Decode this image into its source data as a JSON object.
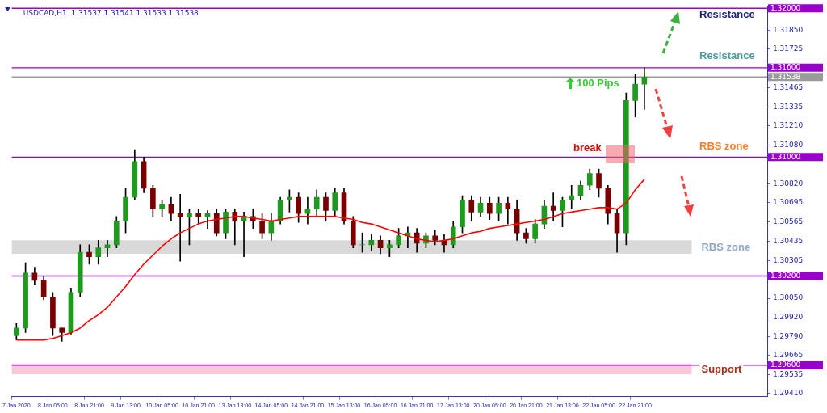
{
  "chart_data": {
    "type": "candlestick",
    "title": "USDCAD,H1  1.31537 1.31541 1.31533 1.31538",
    "categories": [
      "7 Jan 2020",
      null,
      null,
      null,
      "8 Jan 05:00",
      null,
      null,
      null,
      "8 Jan 21:00",
      null,
      null,
      null,
      "9 Jan 13:00",
      null,
      null,
      null,
      "10 Jan 05:00",
      null,
      null,
      null,
      "10 Jan 21:00",
      null,
      null,
      null,
      "13 Jan 13:00",
      null,
      null,
      null,
      "14 Jan 05:00",
      null,
      null,
      null,
      "14 Jan 21:00",
      null,
      null,
      null,
      "15 Jan 13:00",
      null,
      null,
      null,
      "16 Jan 05:00",
      null,
      null,
      null,
      "16 Jan 21:00",
      null,
      null,
      null,
      "17 Jan 13:00",
      null,
      null,
      null,
      "20 Jan 05:00",
      null,
      null,
      null,
      "20 Jan 21:00",
      null,
      null,
      null,
      "21 Jan 13:00",
      null,
      null,
      null,
      "22 Jan 05:00",
      null,
      null,
      null,
      "22 Jan 21:00",
      null,
      null,
      null,
      null,
      null,
      null,
      null,
      null,
      null,
      null,
      null,
      null,
      null,
      null
    ],
    "ohlc": [
      [
        1.298,
        1.2988,
        1.2977,
        1.2985
      ],
      [
        1.2985,
        1.3029,
        1.2982,
        1.3022
      ],
      [
        1.3022,
        1.3026,
        1.3014,
        1.3017
      ],
      [
        1.3017,
        1.302,
        1.3004,
        1.3006
      ],
      [
        1.3006,
        1.3009,
        1.298,
        1.2985
      ],
      [
        1.2985,
        1.2985,
        1.2976,
        1.2982
      ],
      [
        1.2982,
        1.3012,
        1.2981,
        1.3009
      ],
      [
        1.3009,
        1.3041,
        1.3006,
        1.3036
      ],
      [
        1.3036,
        1.3041,
        1.3028,
        1.3033
      ],
      [
        1.3033,
        1.3044,
        1.3028,
        1.3039
      ],
      [
        1.3039,
        1.3044,
        1.3033,
        1.3041
      ],
      [
        1.3041,
        1.306,
        1.3039,
        1.3057
      ],
      [
        1.3057,
        1.3079,
        1.3049,
        1.3073
      ],
      [
        1.3073,
        1.3105,
        1.3071,
        1.3097
      ],
      [
        1.3097,
        1.31,
        1.3076,
        1.3079
      ],
      [
        1.3079,
        1.3081,
        1.306,
        1.3065
      ],
      [
        1.3065,
        1.3071,
        1.306,
        1.3068
      ],
      [
        1.3068,
        1.3073,
        1.3057,
        1.3062
      ],
      [
        1.3062,
        1.3075,
        1.303,
        1.306
      ],
      [
        1.306,
        1.3065,
        1.3041,
        1.3062
      ],
      [
        1.3062,
        1.3065,
        1.3055,
        1.306
      ],
      [
        1.306,
        1.3064,
        1.3052,
        1.3062
      ],
      [
        1.3062,
        1.3065,
        1.3047,
        1.3049
      ],
      [
        1.3049,
        1.3065,
        1.3045,
        1.3063
      ],
      [
        1.3063,
        1.3065,
        1.3041,
        1.3057
      ],
      [
        1.3057,
        1.3063,
        1.3033,
        1.306
      ],
      [
        1.306,
        1.3065,
        1.3052,
        1.3057
      ],
      [
        1.3057,
        1.3062,
        1.3045,
        1.3049
      ],
      [
        1.3049,
        1.3062,
        1.3044,
        1.3057
      ],
      [
        1.3057,
        1.3073,
        1.3055,
        1.3071
      ],
      [
        1.3071,
        1.3078,
        1.3063,
        1.3073
      ],
      [
        1.3073,
        1.3076,
        1.3056,
        1.3062
      ],
      [
        1.3062,
        1.3073,
        1.3055,
        1.3065
      ],
      [
        1.3065,
        1.3078,
        1.306,
        1.3073
      ],
      [
        1.3073,
        1.3076,
        1.3057,
        1.3064
      ],
      [
        1.3064,
        1.3079,
        1.306,
        1.3076
      ],
      [
        1.3076,
        1.3079,
        1.3055,
        1.3057
      ],
      [
        1.3057,
        1.306,
        1.3039,
        1.3041
      ],
      [
        1.3041,
        1.3049,
        1.3036,
        1.3041
      ],
      [
        1.3041,
        1.3048,
        1.3037,
        1.3044
      ],
      [
        1.3044,
        1.3047,
        1.3035,
        1.3039
      ],
      [
        1.3039,
        1.3044,
        1.3033,
        1.3041
      ],
      [
        1.3041,
        1.3052,
        1.3039,
        1.3047
      ],
      [
        1.3047,
        1.3053,
        1.3039,
        1.3049
      ],
      [
        1.3049,
        1.3052,
        1.3036,
        1.3042
      ],
      [
        1.3042,
        1.3049,
        1.3039,
        1.3047
      ],
      [
        1.3047,
        1.3051,
        1.3041,
        1.3044
      ],
      [
        1.3044,
        1.3048,
        1.3036,
        1.3041
      ],
      [
        1.3041,
        1.3057,
        1.3039,
        1.3053
      ],
      [
        1.3053,
        1.3074,
        1.3049,
        1.3071
      ],
      [
        1.3071,
        1.3074,
        1.3057,
        1.3063
      ],
      [
        1.3063,
        1.3073,
        1.306,
        1.3069
      ],
      [
        1.3069,
        1.3073,
        1.3058,
        1.3062
      ],
      [
        1.3062,
        1.3073,
        1.3057,
        1.3069
      ],
      [
        1.3069,
        1.3073,
        1.3055,
        1.3065
      ],
      [
        1.3065,
        1.3071,
        1.3044,
        1.3049
      ],
      [
        1.3049,
        1.3052,
        1.3042,
        1.3045
      ],
      [
        1.3045,
        1.3058,
        1.3042,
        1.3055
      ],
      [
        1.3055,
        1.3071,
        1.3052,
        1.3067
      ],
      [
        1.3067,
        1.3076,
        1.3057,
        1.3064
      ],
      [
        1.3064,
        1.3073,
        1.3053,
        1.3071
      ],
      [
        1.3071,
        1.3081,
        1.3065,
        1.3074
      ],
      [
        1.3074,
        1.3084,
        1.3071,
        1.3081
      ],
      [
        1.3081,
        1.3092,
        1.3078,
        1.3089
      ],
      [
        1.3089,
        1.3092,
        1.3073,
        1.3079
      ],
      [
        1.3079,
        1.3081,
        1.3055,
        1.3062
      ],
      [
        1.3062,
        1.3065,
        1.3036,
        1.3049
      ],
      [
        1.3049,
        1.3143,
        1.3041,
        1.3138
      ],
      [
        1.3138,
        1.3156,
        1.3127,
        1.3149
      ],
      [
        1.3149,
        1.316,
        1.3132,
        1.31538
      ],
      null,
      null,
      null,
      null,
      null,
      null,
      null,
      null,
      null,
      null,
      null,
      null,
      null
    ],
    "series": [
      {
        "type": "line",
        "color": "#ff0000",
        "values": [
          1.2977,
          1.2977,
          1.2977,
          1.2977,
          1.2978,
          1.298,
          1.2982,
          1.2985,
          1.299,
          1.2994,
          1.2999,
          1.3006,
          1.3013,
          1.3021,
          1.3028,
          1.3034,
          1.304,
          1.3045,
          1.3049,
          1.3052,
          1.3055,
          1.3057,
          1.3058,
          1.3059,
          1.306,
          1.306,
          1.3059,
          1.3058,
          1.3057,
          1.3058,
          1.3059,
          1.306,
          1.306,
          1.306,
          1.306,
          1.306,
          1.3059,
          1.3058,
          1.3056,
          1.3055,
          1.3053,
          1.3051,
          1.3049,
          1.3047,
          1.3045,
          1.3044,
          1.3043,
          1.3044,
          1.3045,
          1.3047,
          1.3049,
          1.305,
          1.3052,
          1.3053,
          1.3054,
          1.3055,
          1.3056,
          1.3057,
          1.3058,
          1.306,
          1.3062,
          1.3063,
          1.3064,
          1.3065,
          1.3066,
          1.3066,
          1.3065,
          1.3069,
          1.3078,
          1.3085,
          null,
          null,
          null,
          null,
          null,
          null,
          null,
          null,
          null,
          null,
          null,
          null,
          null
        ]
      }
    ],
    "ylim": [
      1.2939,
      1.3201
    ],
    "yticks": [
      {
        "value": 1.2941,
        "label": "1.29410"
      },
      {
        "value": 1.29535,
        "label": "1.29535"
      },
      {
        "value": 1.29665,
        "label": "1.29665"
      },
      {
        "value": 1.2979,
        "label": "1.29790"
      },
      {
        "value": 1.2992,
        "label": "1.29920"
      },
      {
        "value": 1.3005,
        "label": "1.30050"
      },
      {
        "value": 1.30305,
        "label": "1.30305"
      },
      {
        "value": 1.30435,
        "label": "1.30435"
      },
      {
        "value": 1.30565,
        "label": "1.30565"
      },
      {
        "value": 1.30695,
        "label": "1.30695"
      },
      {
        "value": 1.3082,
        "label": "1.30820"
      },
      {
        "value": 1.3108,
        "label": "1.31080"
      },
      {
        "value": 1.3121,
        "label": "1.31210"
      },
      {
        "value": 1.31335,
        "label": "1.31335"
      },
      {
        "value": 1.31465,
        "label": "1.31465"
      },
      {
        "value": 1.31725,
        "label": "1.31725"
      },
      {
        "value": 1.3185,
        "label": "1.31850"
      }
    ],
    "ref_lines": [
      {
        "axis": "y",
        "value": 1.32,
        "label": "1.32000",
        "color": "#9900cc"
      },
      {
        "axis": "y",
        "value": 1.316,
        "label": "1.31600",
        "color": "#9900cc"
      },
      {
        "axis": "y",
        "value": 1.31538,
        "label": "1.31538",
        "color": "#9a9a9a"
      },
      {
        "axis": "y",
        "value": 1.31,
        "label": "1.31000",
        "color": "#9900cc"
      },
      {
        "axis": "y",
        "value": 1.302,
        "label": "1.30200",
        "color": "#9900cc"
      },
      {
        "axis": "y",
        "value": 1.296,
        "label": "1.29600",
        "color": "#9900cc"
      }
    ],
    "bands": [
      {
        "axis": "y",
        "from": 1.3035,
        "to": 1.3044,
        "label": "RBS zone",
        "color": "#d9d9d9"
      },
      {
        "axis": "y",
        "from": 1.2954,
        "to": 1.2961,
        "label": "Support",
        "color": "#f8c8d8"
      }
    ],
    "annotations": [
      "Resistance",
      "Resistance",
      "RBS zone",
      "100 Pips",
      "break"
    ],
    "grid": false,
    "legend": false
  }
}
